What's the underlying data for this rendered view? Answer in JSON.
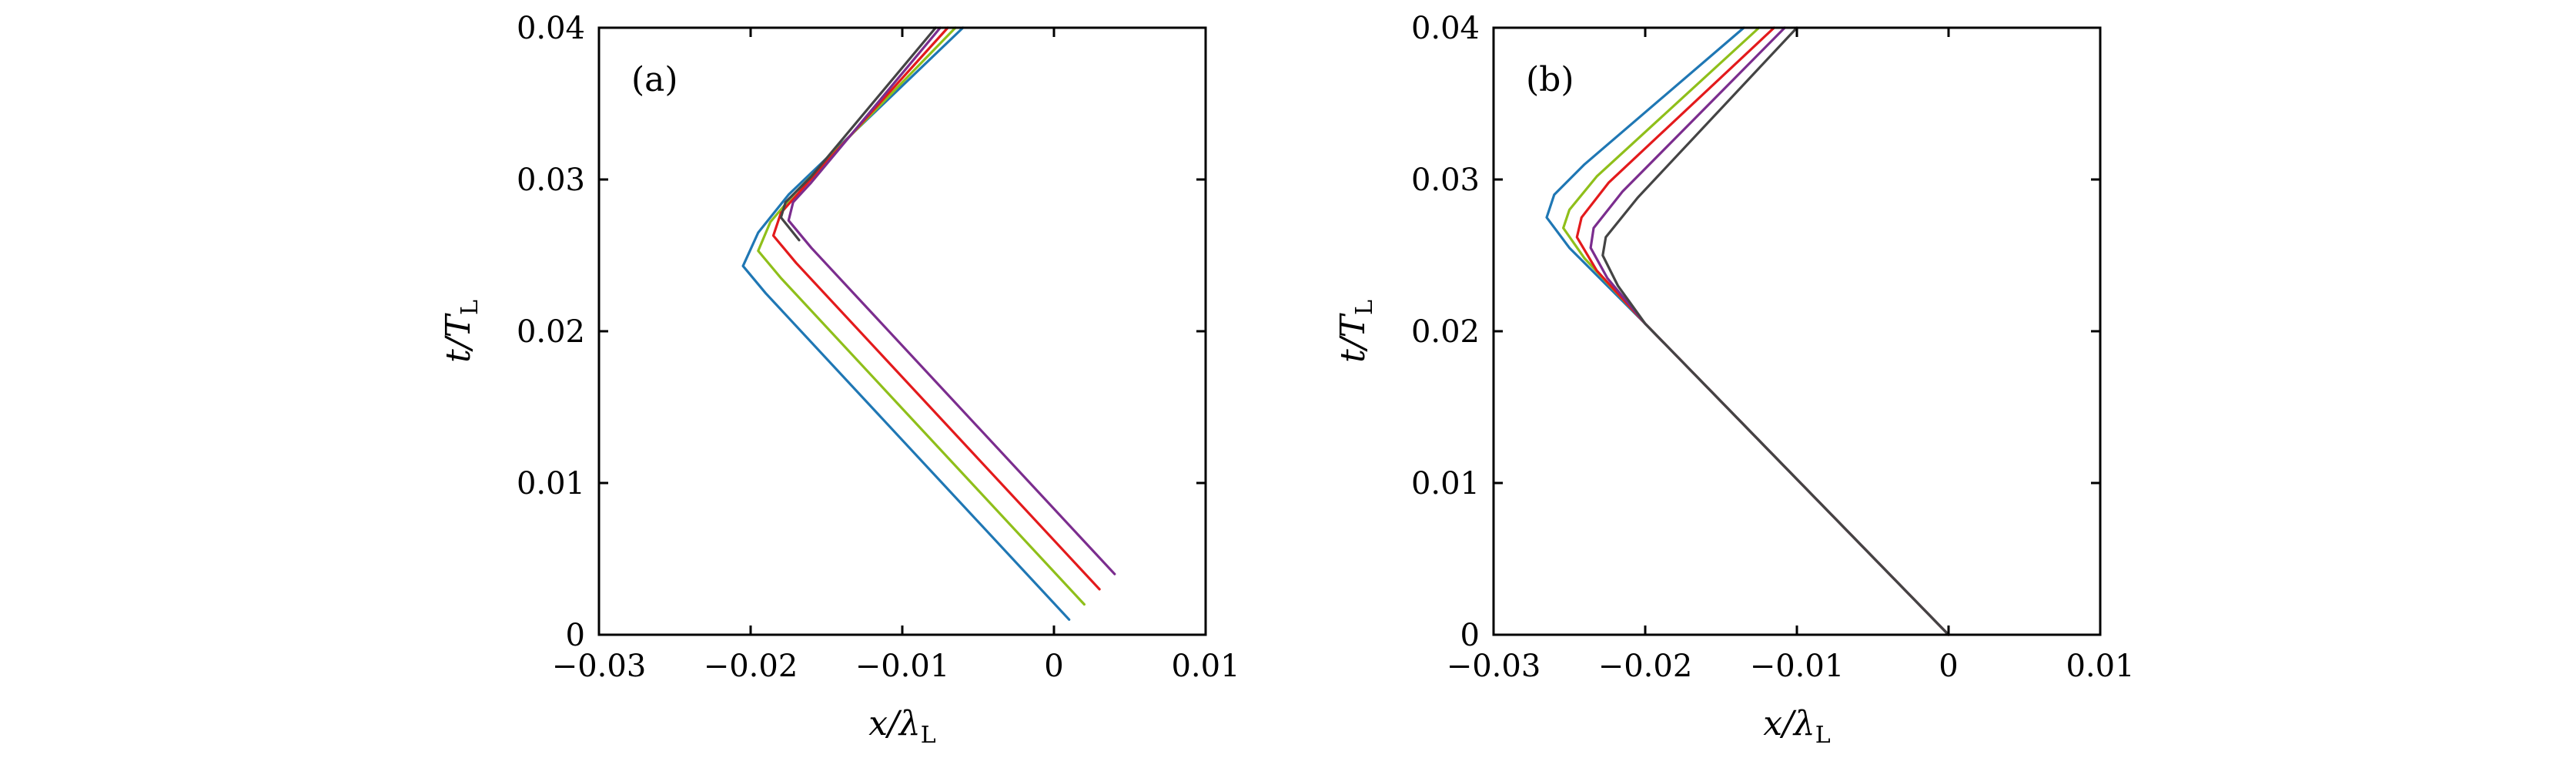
{
  "chart_data": [
    {
      "type": "line",
      "panel_label": "(a)",
      "xlabel": "x/λ",
      "xlabel_sub": "L",
      "ylabel": "t/T",
      "ylabel_sub": "L",
      "xlim": [
        -0.03,
        0.01
      ],
      "ylim": [
        0,
        0.04
      ],
      "xticks": [
        {
          "value": -0.03,
          "label": "−0.03"
        },
        {
          "value": -0.02,
          "label": "−0.02"
        },
        {
          "value": -0.01,
          "label": "−0.01"
        },
        {
          "value": 0,
          "label": "0"
        },
        {
          "value": 0.01,
          "label": "0.01"
        }
      ],
      "yticks": [
        {
          "value": 0,
          "label": "0"
        },
        {
          "value": 0.01,
          "label": "0.01"
        },
        {
          "value": 0.02,
          "label": "0.02"
        },
        {
          "value": 0.03,
          "label": "0.03"
        },
        {
          "value": 0.04,
          "label": "0.04"
        }
      ],
      "grid": false,
      "series": [
        {
          "color": "#1f77b4",
          "points": [
            [
              0.001,
              0.001
            ],
            [
              -0.019,
              0.0225
            ],
            [
              -0.0205,
              0.0243
            ],
            [
              -0.0195,
              0.0265
            ],
            [
              -0.0175,
              0.029
            ],
            [
              -0.006,
              0.04
            ]
          ]
        },
        {
          "color": "#8fbf1a",
          "points": [
            [
              0.002,
              0.002
            ],
            [
              -0.018,
              0.0235
            ],
            [
              -0.0195,
              0.0253
            ],
            [
              -0.0187,
              0.0272
            ],
            [
              -0.017,
              0.0292
            ],
            [
              -0.0065,
              0.04
            ]
          ]
        },
        {
          "color": "#e31a1c",
          "points": [
            [
              0.003,
              0.003
            ],
            [
              -0.017,
              0.0245
            ],
            [
              -0.0185,
              0.0263
            ],
            [
              -0.018,
              0.0278
            ],
            [
              -0.0165,
              0.0295
            ],
            [
              -0.007,
              0.04
            ]
          ]
        },
        {
          "color": "#7b2d8e",
          "points": [
            [
              0.004,
              0.004
            ],
            [
              -0.016,
              0.0255
            ],
            [
              -0.0175,
              0.0273
            ],
            [
              -0.0172,
              0.0285
            ],
            [
              -0.016,
              0.0298
            ],
            [
              -0.0075,
              0.04
            ]
          ]
        },
        {
          "color": "#444444",
          "points": [
            [
              -0.0168,
              0.026
            ],
            [
              -0.018,
              0.0275
            ],
            [
              -0.0177,
              0.0285
            ],
            [
              -0.016,
              0.0302
            ],
            [
              -0.0078,
              0.04
            ]
          ]
        }
      ]
    },
    {
      "type": "line",
      "panel_label": "(b)",
      "xlabel": "x/λ",
      "xlabel_sub": "L",
      "ylabel": "t/T",
      "ylabel_sub": "L",
      "xlim": [
        -0.03,
        0.01
      ],
      "ylim": [
        0,
        0.04
      ],
      "xticks": [
        {
          "value": -0.03,
          "label": "−0.03"
        },
        {
          "value": -0.02,
          "label": "−0.02"
        },
        {
          "value": -0.01,
          "label": "−0.01"
        },
        {
          "value": 0,
          "label": "0"
        },
        {
          "value": 0.01,
          "label": "0.01"
        }
      ],
      "yticks": [
        {
          "value": 0,
          "label": "0"
        },
        {
          "value": 0.01,
          "label": "0.01"
        },
        {
          "value": 0.02,
          "label": "0.02"
        },
        {
          "value": 0.03,
          "label": "0.03"
        },
        {
          "value": 0.04,
          "label": "0.04"
        }
      ],
      "grid": false,
      "series": [
        {
          "color": "#1f77b4",
          "points": [
            [
              0,
              0
            ],
            [
              -0.02,
              0.0205
            ],
            [
              -0.025,
              0.0255
            ],
            [
              -0.0265,
              0.0275
            ],
            [
              -0.026,
              0.029
            ],
            [
              -0.024,
              0.031
            ],
            [
              -0.0135,
              0.04
            ]
          ]
        },
        {
          "color": "#8fbf1a",
          "points": [
            [
              0,
              0
            ],
            [
              -0.02,
              0.0205
            ],
            [
              -0.024,
              0.0248
            ],
            [
              -0.0254,
              0.0268
            ],
            [
              -0.025,
              0.028
            ],
            [
              -0.0232,
              0.0302
            ],
            [
              -0.0125,
              0.04
            ]
          ]
        },
        {
          "color": "#e31a1c",
          "points": [
            [
              0,
              0
            ],
            [
              -0.02,
              0.0205
            ],
            [
              -0.0232,
              0.024
            ],
            [
              -0.0245,
              0.0262
            ],
            [
              -0.0242,
              0.0275
            ],
            [
              -0.0224,
              0.0298
            ],
            [
              -0.0115,
              0.04
            ]
          ]
        },
        {
          "color": "#7b2d8e",
          "points": [
            [
              0,
              0
            ],
            [
              -0.02,
              0.0205
            ],
            [
              -0.0225,
              0.0235
            ],
            [
              -0.0236,
              0.0255
            ],
            [
              -0.0234,
              0.0268
            ],
            [
              -0.0215,
              0.0292
            ],
            [
              -0.0108,
              0.04
            ]
          ]
        },
        {
          "color": "#444444",
          "points": [
            [
              0,
              0
            ],
            [
              -0.02,
              0.0205
            ],
            [
              -0.0218,
              0.023
            ],
            [
              -0.0228,
              0.025
            ],
            [
              -0.0226,
              0.0262
            ],
            [
              -0.0205,
              0.0288
            ],
            [
              -0.01,
              0.04
            ]
          ]
        }
      ]
    }
  ]
}
